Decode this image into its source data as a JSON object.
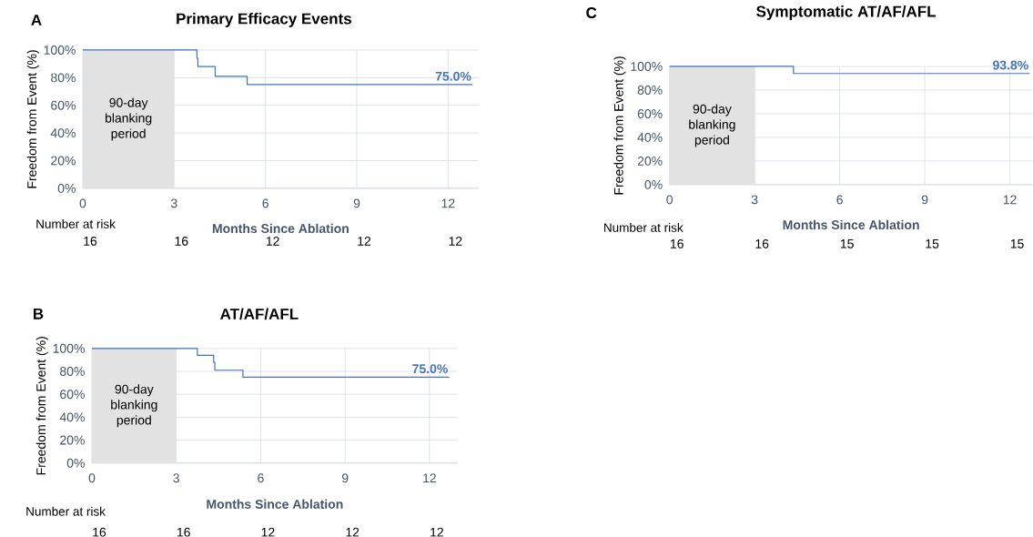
{
  "chart_data": [
    {
      "type": "step",
      "title": "Primary Efficacy Events",
      "xlabel": "Months Since Ablation",
      "ylabel": "Freedom from Event (%)",
      "x": [
        0,
        3.75,
        3.78,
        4.35,
        5.4,
        12.8
      ],
      "series": [
        {
          "color": "#4472c4",
          "values": [
            100,
            94,
            88,
            81,
            75,
            75
          ]
        }
      ],
      "xlim": [
        0,
        13
      ],
      "ylim": [
        0,
        100
      ],
      "xticks": [
        0,
        3,
        6,
        9,
        12
      ],
      "yticks": [
        {
          "value": 0,
          "label": "0%"
        },
        {
          "value": 20,
          "label": "20%"
        },
        {
          "value": 40,
          "label": "40%"
        },
        {
          "value": 60,
          "label": "60%"
        },
        {
          "value": 80,
          "label": "80%"
        },
        {
          "value": 100,
          "label": "100%"
        }
      ],
      "grid": true,
      "bands": [
        {
          "axis": "x",
          "from": 0,
          "to": 3,
          "label": "90-day blanking period",
          "color": "#e2e2e2"
        }
      ],
      "annotations": [
        "A",
        "Number at risk",
        "16",
        "16",
        "12",
        "12",
        "12",
        "75.0%"
      ]
    },
    {
      "type": "step",
      "title": "AT/AF/AFL",
      "xlabel": "Months Since Ablation",
      "ylabel": "Freedom from Event (%)",
      "x": [
        0,
        3.75,
        4.33,
        4.37,
        5.37,
        12.7
      ],
      "series": [
        {
          "color": "#4472c4",
          "values": [
            100,
            94,
            88,
            81,
            75,
            75
          ]
        }
      ],
      "xlim": [
        0,
        13
      ],
      "ylim": [
        0,
        100
      ],
      "xticks": [
        0,
        3,
        6,
        9,
        12
      ],
      "yticks": [
        {
          "value": 0,
          "label": "0%"
        },
        {
          "value": 20,
          "label": "20%"
        },
        {
          "value": 40,
          "label": "40%"
        },
        {
          "value": 60,
          "label": "60%"
        },
        {
          "value": 80,
          "label": "80%"
        },
        {
          "value": 100,
          "label": "100%"
        }
      ],
      "grid": true,
      "bands": [
        {
          "axis": "x",
          "from": 0,
          "to": 3,
          "label": "90-day blanking period",
          "color": "#e2e2e2"
        }
      ],
      "annotations": [
        "B",
        "Number at risk",
        "16",
        "16",
        "12",
        "12",
        "12",
        "75.0%"
      ]
    },
    {
      "type": "step",
      "title": "Symptomatic AT/AF/AFL",
      "xlabel": "Months Since Ablation",
      "ylabel": "Freedom from Event (%)",
      "x": [
        0,
        4.37,
        12.7
      ],
      "series": [
        {
          "color": "#4472c4",
          "values": [
            100,
            94,
            94
          ]
        }
      ],
      "xlim": [
        0,
        12.8
      ],
      "ylim": [
        0,
        100
      ],
      "xticks": [
        0,
        3,
        6,
        9,
        12
      ],
      "yticks": [
        {
          "value": 0,
          "label": "0%"
        },
        {
          "value": 20,
          "label": "20%"
        },
        {
          "value": 40,
          "label": "40%"
        },
        {
          "value": 60,
          "label": "60%"
        },
        {
          "value": 80,
          "label": "80%"
        },
        {
          "value": 100,
          "label": "100%"
        }
      ],
      "grid": true,
      "bands": [
        {
          "axis": "x",
          "from": 0,
          "to": 3,
          "label": "90-day blanking period",
          "color": "#e2e2e2"
        }
      ],
      "annotations": [
        "C",
        "Number at risk",
        "16",
        "16",
        "15",
        "15",
        "15",
        "93.8%"
      ]
    }
  ]
}
